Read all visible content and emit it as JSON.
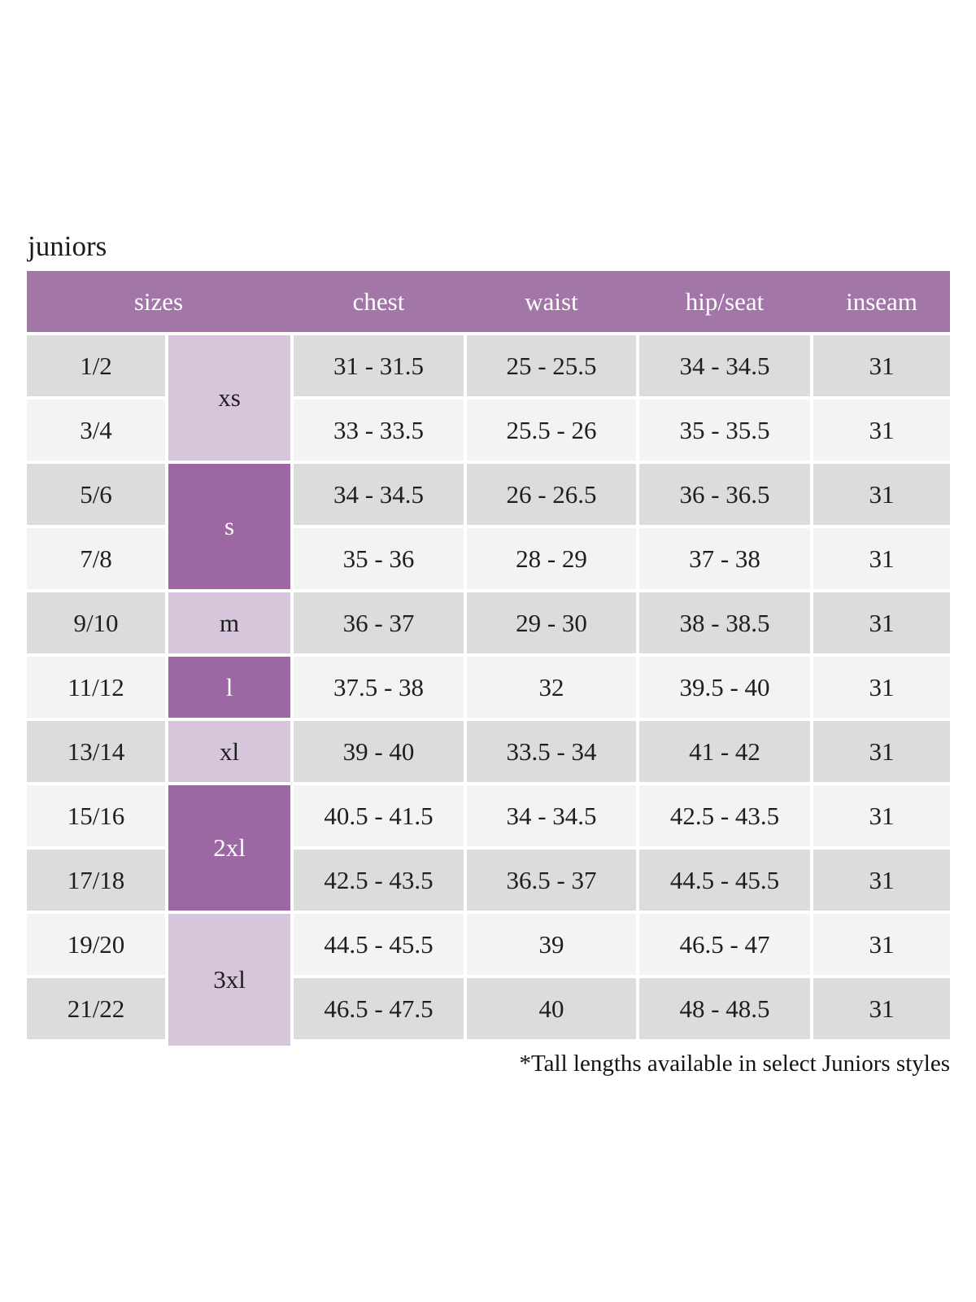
{
  "page": {
    "title": "juniors",
    "footnote": "*Tall lengths available in select Juniors styles"
  },
  "colors": {
    "header_purple": "#a277a8",
    "size_group_dark_purple": "#9c67a3",
    "size_group_light_lavender": "#d7c5db",
    "row_gray": "#dcdcdc",
    "row_offwhite": "#f4f3f4",
    "header_text": "#ffffff",
    "body_text": "#1e1e1e"
  },
  "table": {
    "headers": [
      "sizes",
      "chest",
      "waist",
      "hip/seat",
      "inseam"
    ],
    "size_groups": [
      {
        "label": "xs",
        "tone": "light",
        "rows": 2
      },
      {
        "label": "s",
        "tone": "dark",
        "rows": 2
      },
      {
        "label": "m",
        "tone": "light",
        "rows": 1
      },
      {
        "label": "l",
        "tone": "dark",
        "rows": 1
      },
      {
        "label": "xl",
        "tone": "light",
        "rows": 1
      },
      {
        "label": "2xl",
        "tone": "dark",
        "rows": 2
      },
      {
        "label": "3xl",
        "tone": "light",
        "rows": 2
      }
    ],
    "rows": [
      {
        "sizes": "1/2",
        "chest": "31 - 31.5",
        "waist": "25 - 25.5",
        "hip_seat": "34 - 34.5",
        "inseam": "31"
      },
      {
        "sizes": "3/4",
        "chest": "33 - 33.5",
        "waist": "25.5 - 26",
        "hip_seat": "35 - 35.5",
        "inseam": "31"
      },
      {
        "sizes": "5/6",
        "chest": "34 - 34.5",
        "waist": "26 - 26.5",
        "hip_seat": "36 - 36.5",
        "inseam": "31"
      },
      {
        "sizes": "7/8",
        "chest": "35 - 36",
        "waist": "28 - 29",
        "hip_seat": "37 - 38",
        "inseam": "31"
      },
      {
        "sizes": "9/10",
        "chest": "36 - 37",
        "waist": "29 - 30",
        "hip_seat": "38 - 38.5",
        "inseam": "31"
      },
      {
        "sizes": "11/12",
        "chest": "37.5 - 38",
        "waist": "32",
        "hip_seat": "39.5 - 40",
        "inseam": "31"
      },
      {
        "sizes": "13/14",
        "chest": "39 - 40",
        "waist": "33.5 - 34",
        "hip_seat": "41 - 42",
        "inseam": "31"
      },
      {
        "sizes": "15/16",
        "chest": "40.5 - 41.5",
        "waist": "34 - 34.5",
        "hip_seat": "42.5 - 43.5",
        "inseam": "31"
      },
      {
        "sizes": "17/18",
        "chest": "42.5 - 43.5",
        "waist": "36.5 - 37",
        "hip_seat": "44.5 - 45.5",
        "inseam": "31"
      },
      {
        "sizes": "19/20",
        "chest": "44.5 - 45.5",
        "waist": "39",
        "hip_seat": "46.5 - 47",
        "inseam": "31"
      },
      {
        "sizes": "21/22",
        "chest": "46.5 - 47.5",
        "waist": "40",
        "hip_seat": "48 - 48.5",
        "inseam": "31"
      }
    ]
  }
}
